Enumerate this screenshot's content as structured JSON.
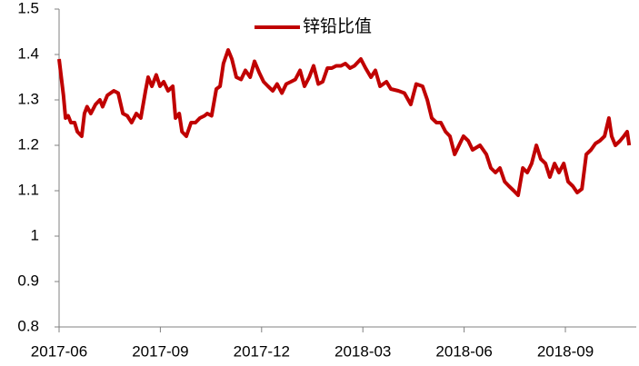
{
  "chart_data": {
    "type": "line",
    "series": [
      {
        "name": "锌铅比值",
        "color": "#c00000",
        "x": [
          0,
          0.08,
          0.13,
          0.19,
          0.27,
          0.35,
          0.46,
          0.54,
          0.67,
          0.75,
          0.83,
          0.94,
          1.08,
          1.21,
          1.29,
          1.43,
          1.62,
          1.75,
          1.89,
          2.02,
          2.15,
          2.29,
          2.42,
          2.56,
          2.64,
          2.75,
          2.88,
          2.99,
          3.1,
          3.23,
          3.37,
          3.45,
          3.56,
          3.64,
          3.77,
          3.91,
          4.04,
          4.17,
          4.31,
          4.39,
          4.52,
          4.66,
          4.77,
          4.87,
          5.01,
          5.12,
          5.25,
          5.39,
          5.52,
          5.66,
          5.79,
          5.93,
          6.06,
          6.19,
          6.33,
          6.46,
          6.6,
          6.73,
          6.87,
          7.0,
          7.14,
          7.27,
          7.41,
          7.54,
          7.68,
          7.81,
          7.95,
          8.08,
          8.21,
          8.35,
          8.48,
          8.62,
          8.75,
          8.94,
          9.08,
          9.24,
          9.37,
          9.51,
          9.7,
          9.83,
          10.05,
          10.23,
          10.42,
          10.58,
          10.77,
          10.91,
          11.04,
          11.18,
          11.31,
          11.45,
          11.58,
          11.72,
          11.85,
          11.98,
          12.12,
          12.25,
          12.47,
          12.66,
          12.79,
          12.93,
          13.06,
          13.2,
          13.33,
          13.47,
          13.6,
          13.74,
          13.87,
          14.0,
          14.14,
          14.27,
          14.41,
          14.54,
          14.68,
          14.81,
          14.95,
          15.08,
          15.22,
          15.35,
          15.49,
          15.62,
          15.76,
          15.89,
          16.02,
          16.16,
          16.29,
          16.37,
          16.48,
          16.62,
          16.73,
          16.83,
          16.89
        ],
        "values": [
          1.39,
          1.34,
          1.31,
          1.26,
          1.265,
          1.25,
          1.25,
          1.23,
          1.22,
          1.27,
          1.285,
          1.27,
          1.29,
          1.3,
          1.285,
          1.31,
          1.32,
          1.315,
          1.27,
          1.265,
          1.25,
          1.27,
          1.26,
          1.32,
          1.35,
          1.33,
          1.355,
          1.33,
          1.34,
          1.32,
          1.33,
          1.26,
          1.27,
          1.23,
          1.22,
          1.25,
          1.25,
          1.26,
          1.265,
          1.27,
          1.265,
          1.324,
          1.33,
          1.38,
          1.41,
          1.39,
          1.35,
          1.345,
          1.365,
          1.35,
          1.385,
          1.36,
          1.34,
          1.33,
          1.32,
          1.335,
          1.315,
          1.335,
          1.34,
          1.345,
          1.365,
          1.33,
          1.35,
          1.375,
          1.335,
          1.34,
          1.37,
          1.37,
          1.375,
          1.375,
          1.38,
          1.37,
          1.375,
          1.39,
          1.37,
          1.35,
          1.365,
          1.33,
          1.34,
          1.324,
          1.32,
          1.315,
          1.29,
          1.335,
          1.33,
          1.3,
          1.26,
          1.25,
          1.25,
          1.23,
          1.22,
          1.18,
          1.2,
          1.22,
          1.21,
          1.19,
          1.2,
          1.18,
          1.15,
          1.14,
          1.15,
          1.12,
          1.11,
          1.1,
          1.09,
          1.15,
          1.14,
          1.16,
          1.2,
          1.17,
          1.16,
          1.13,
          1.16,
          1.14,
          1.16,
          1.12,
          1.11,
          1.096,
          1.104,
          1.18,
          1.19,
          1.204,
          1.21,
          1.22,
          1.26,
          1.22,
          1.2,
          1.21,
          1.22,
          1.23,
          1.2
        ]
      }
    ],
    "xlim": [
      0,
      17.1
    ],
    "xticks": [
      {
        "value": 0,
        "label": "2017-06"
      },
      {
        "value": 3,
        "label": "2017-09"
      },
      {
        "value": 6,
        "label": "2017-12"
      },
      {
        "value": 9,
        "label": "2018-03"
      },
      {
        "value": 12,
        "label": "2018-06"
      },
      {
        "value": 15,
        "label": "2018-09"
      }
    ],
    "ylim": [
      0.8,
      1.5
    ],
    "yticks": [
      0.8,
      0.9,
      1,
      1.1,
      1.2,
      1.3,
      1.4,
      1.5
    ],
    "legend": "top"
  }
}
